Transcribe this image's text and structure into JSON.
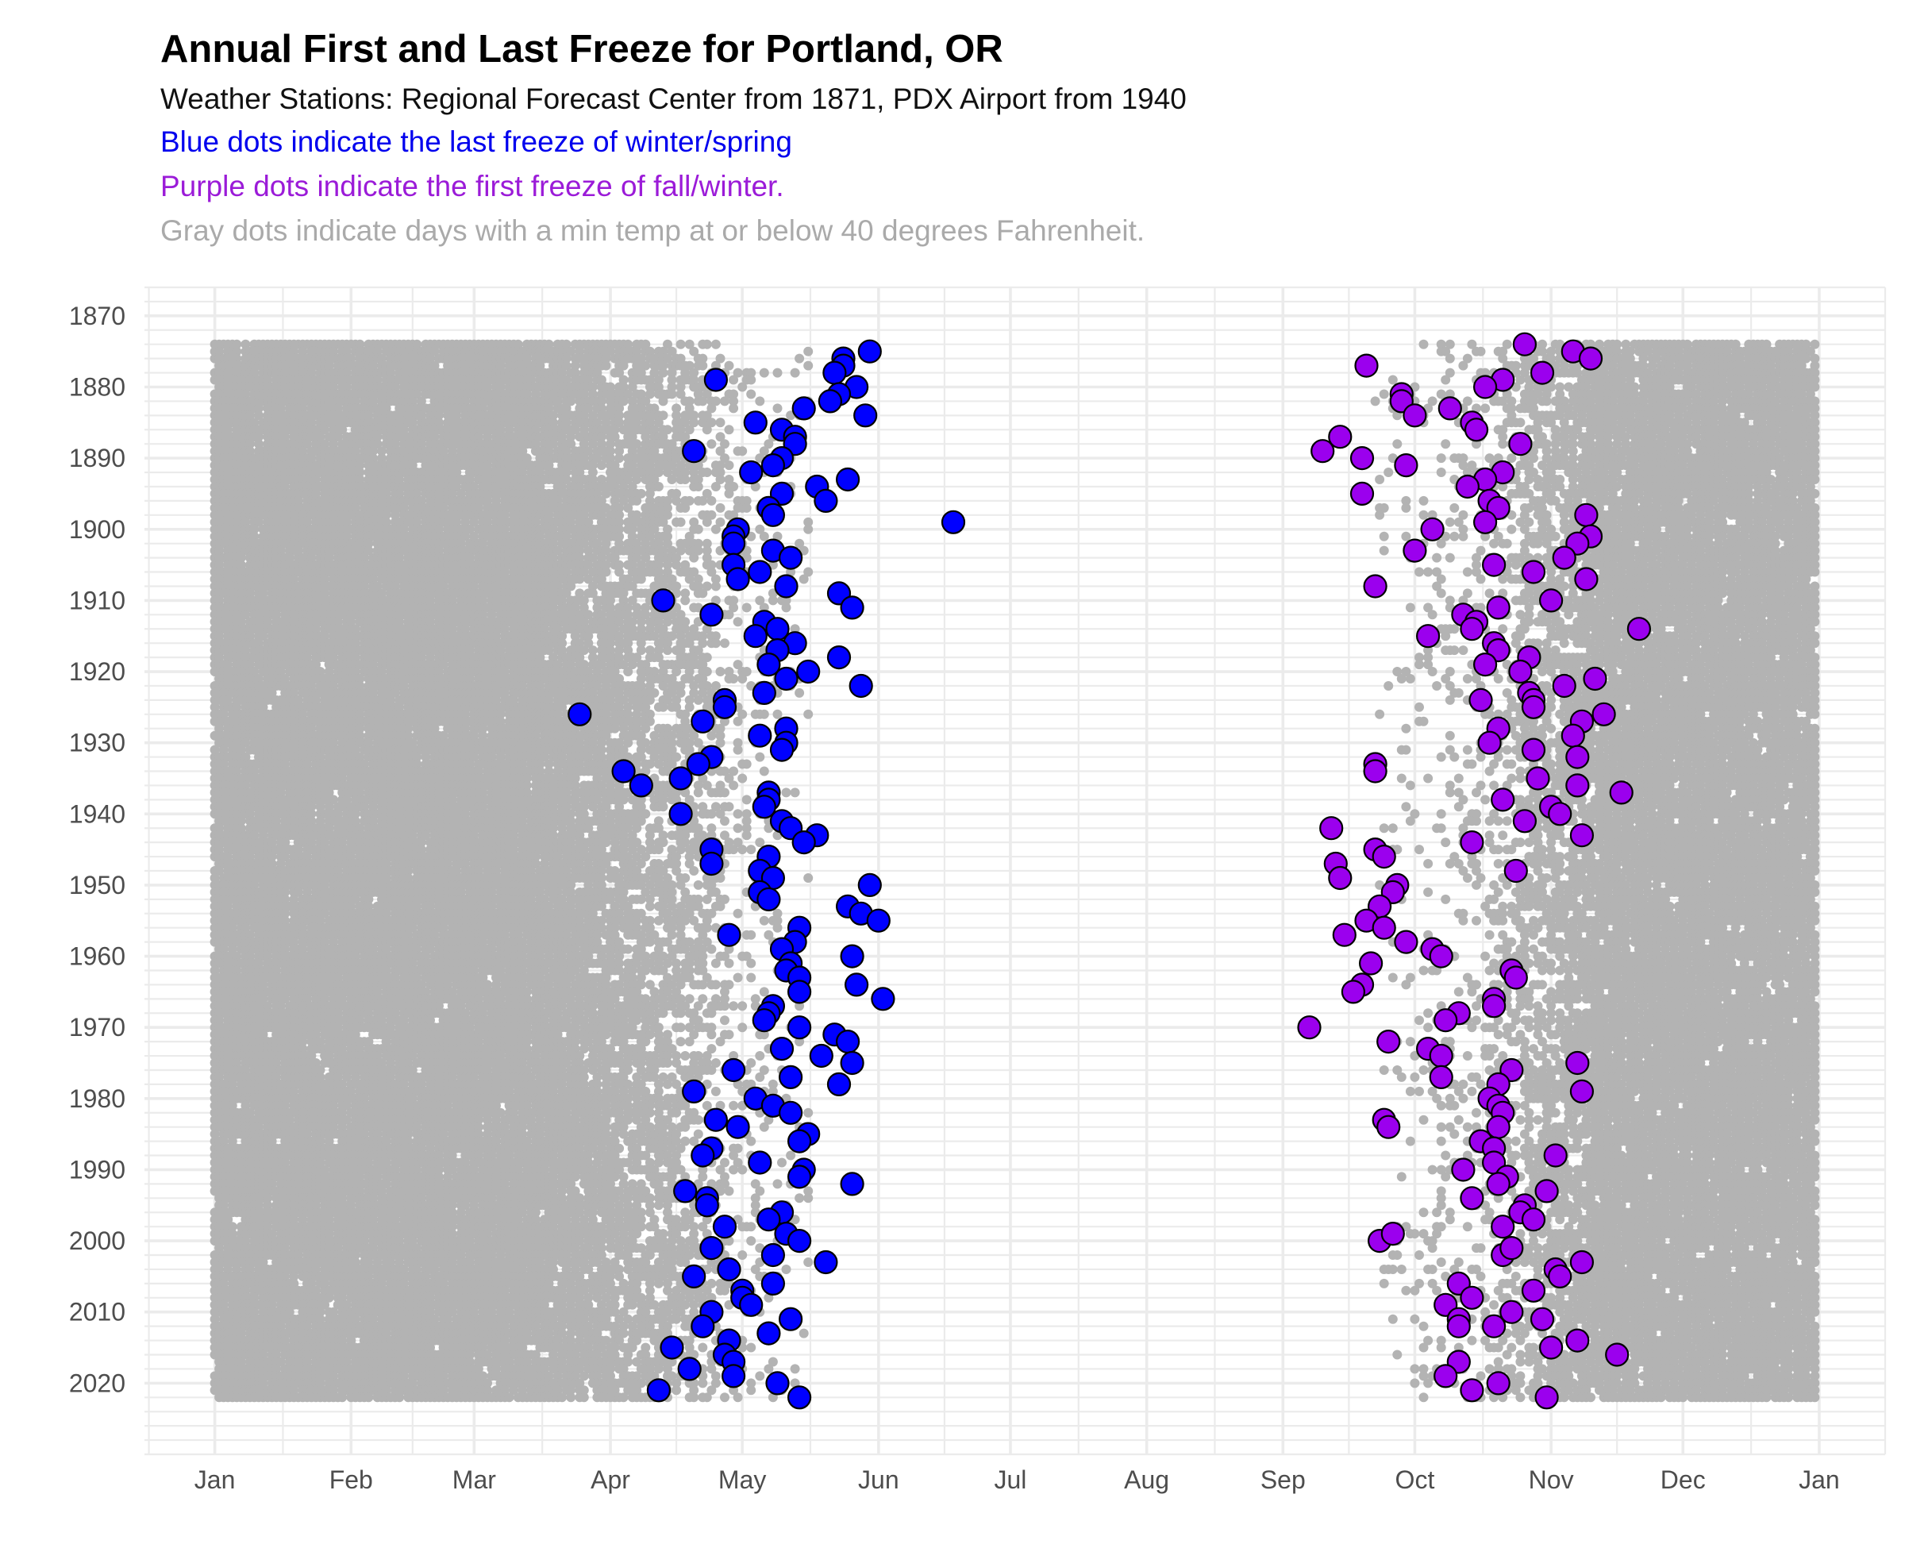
{
  "title": "Annual First and Last Freeze for Portland, OR",
  "subtitle_lines": [
    {
      "text": "Weather Stations: Regional Forecast Center from 1871, PDX Airport from 1940",
      "color": "#111111"
    },
    {
      "text": "Blue dots indicate the last freeze of winter/spring",
      "color": "#0000ee"
    },
    {
      "text": "Purple dots indicate the first freeze of fall/winter.",
      "color": "#9b1bd8"
    },
    {
      "text": "Gray dots indicate days with a min temp at or below 40 degrees Fahrenheit.",
      "color": "#aaaaaa"
    }
  ],
  "chart_data": {
    "type": "scatter",
    "title": "Annual First and Last Freeze for Portland, OR",
    "xlabel": "",
    "ylabel": "",
    "x_axis": "day of year",
    "x_ticks": [
      {
        "label": "Jan",
        "day": 1
      },
      {
        "label": "Feb",
        "day": 32
      },
      {
        "label": "Mar",
        "day": 60
      },
      {
        "label": "Apr",
        "day": 91
      },
      {
        "label": "May",
        "day": 121
      },
      {
        "label": "Jun",
        "day": 152
      },
      {
        "label": "Jul",
        "day": 182
      },
      {
        "label": "Aug",
        "day": 213
      },
      {
        "label": "Sep",
        "day": 244
      },
      {
        "label": "Oct",
        "day": 274
      },
      {
        "label": "Nov",
        "day": 305
      },
      {
        "label": "Dec",
        "day": 335
      },
      {
        "label": "Jan",
        "day": 366
      }
    ],
    "xlim": [
      -15,
      381
    ],
    "ylim": [
      2030,
      1866
    ],
    "y_reversed": true,
    "y_ticks": [
      1870,
      1880,
      1890,
      1900,
      1910,
      1920,
      1930,
      1940,
      1950,
      1960,
      1970,
      1980,
      1990,
      2000,
      2010,
      2020
    ],
    "grid": true,
    "legend": "none",
    "colors": {
      "last_freeze": "#0000ff",
      "first_freeze": "#9b00ee",
      "cold_days": "#b3b3b3",
      "grid": "#ebebeb"
    },
    "series": [
      {
        "name": "last freeze",
        "color": "#0000ff",
        "points": [
          [
            150,
            1875
          ],
          [
            144,
            1876
          ],
          [
            144,
            1877
          ],
          [
            142,
            1878
          ],
          [
            115,
            1879
          ],
          [
            147,
            1880
          ],
          [
            143,
            1881
          ],
          [
            141,
            1882
          ],
          [
            135,
            1883
          ],
          [
            149,
            1884
          ],
          [
            124,
            1885
          ],
          [
            130,
            1886
          ],
          [
            133,
            1887
          ],
          [
            133,
            1888
          ],
          [
            110,
            1889
          ],
          [
            130,
            1890
          ],
          [
            128,
            1891
          ],
          [
            123,
            1892
          ],
          [
            145,
            1893
          ],
          [
            138,
            1894
          ],
          [
            130,
            1895
          ],
          [
            140,
            1896
          ],
          [
            127,
            1897
          ],
          [
            128,
            1898
          ],
          [
            169,
            1899
          ],
          [
            120,
            1900
          ],
          [
            119,
            1901
          ],
          [
            119,
            1902
          ],
          [
            128,
            1903
          ],
          [
            132,
            1904
          ],
          [
            119,
            1905
          ],
          [
            125,
            1906
          ],
          [
            120,
            1907
          ],
          [
            131,
            1908
          ],
          [
            143,
            1909
          ],
          [
            103,
            1910
          ],
          [
            146,
            1911
          ],
          [
            114,
            1912
          ],
          [
            126,
            1913
          ],
          [
            129,
            1914
          ],
          [
            124,
            1915
          ],
          [
            133,
            1916
          ],
          [
            129,
            1917
          ],
          [
            143,
            1918
          ],
          [
            127,
            1919
          ],
          [
            136,
            1920
          ],
          [
            131,
            1921
          ],
          [
            148,
            1922
          ],
          [
            126,
            1923
          ],
          [
            117,
            1924
          ],
          [
            117,
            1925
          ],
          [
            84,
            1926
          ],
          [
            112,
            1927
          ],
          [
            131,
            1928
          ],
          [
            125,
            1929
          ],
          [
            131,
            1930
          ],
          [
            130,
            1931
          ],
          [
            114,
            1932
          ],
          [
            111,
            1933
          ],
          [
            94,
            1934
          ],
          [
            107,
            1935
          ],
          [
            98,
            1936
          ],
          [
            127,
            1937
          ],
          [
            127,
            1938
          ],
          [
            126,
            1939
          ],
          [
            107,
            1940
          ],
          [
            130,
            1941
          ],
          [
            132,
            1942
          ],
          [
            138,
            1943
          ],
          [
            135,
            1944
          ],
          [
            114,
            1945
          ],
          [
            127,
            1946
          ],
          [
            114,
            1947
          ],
          [
            125,
            1948
          ],
          [
            128,
            1949
          ],
          [
            150,
            1950
          ],
          [
            125,
            1951
          ],
          [
            127,
            1952
          ],
          [
            145,
            1953
          ],
          [
            148,
            1954
          ],
          [
            152,
            1955
          ],
          [
            134,
            1956
          ],
          [
            118,
            1957
          ],
          [
            133,
            1958
          ],
          [
            130,
            1959
          ],
          [
            146,
            1960
          ],
          [
            132,
            1961
          ],
          [
            131,
            1962
          ],
          [
            134,
            1963
          ],
          [
            147,
            1964
          ],
          [
            134,
            1965
          ],
          [
            153,
            1966
          ],
          [
            128,
            1967
          ],
          [
            127,
            1968
          ],
          [
            126,
            1969
          ],
          [
            134,
            1970
          ],
          [
            142,
            1971
          ],
          [
            145,
            1972
          ],
          [
            130,
            1973
          ],
          [
            139,
            1974
          ],
          [
            146,
            1975
          ],
          [
            119,
            1976
          ],
          [
            132,
            1977
          ],
          [
            143,
            1978
          ],
          [
            110,
            1979
          ],
          [
            124,
            1980
          ],
          [
            128,
            1981
          ],
          [
            132,
            1982
          ],
          [
            115,
            1983
          ],
          [
            120,
            1984
          ],
          [
            136,
            1985
          ],
          [
            134,
            1986
          ],
          [
            114,
            1987
          ],
          [
            112,
            1988
          ],
          [
            125,
            1989
          ],
          [
            135,
            1990
          ],
          [
            134,
            1991
          ],
          [
            146,
            1992
          ],
          [
            108,
            1993
          ],
          [
            113,
            1994
          ],
          [
            113,
            1995
          ],
          [
            130,
            1996
          ],
          [
            127,
            1997
          ],
          [
            117,
            1998
          ],
          [
            131,
            1999
          ],
          [
            134,
            2000
          ],
          [
            114,
            2001
          ],
          [
            128,
            2002
          ],
          [
            140,
            2003
          ],
          [
            118,
            2004
          ],
          [
            110,
            2005
          ],
          [
            128,
            2006
          ],
          [
            121,
            2007
          ],
          [
            121,
            2008
          ],
          [
            123,
            2009
          ],
          [
            114,
            2010
          ],
          [
            132,
            2011
          ],
          [
            112,
            2012
          ],
          [
            127,
            2013
          ],
          [
            118,
            2014
          ],
          [
            105,
            2015
          ],
          [
            117,
            2016
          ],
          [
            119,
            2017
          ],
          [
            109,
            2018
          ],
          [
            119,
            2019
          ],
          [
            129,
            2020
          ],
          [
            102,
            2021
          ],
          [
            134,
            2022
          ]
        ]
      },
      {
        "name": "first freeze",
        "color": "#9b00ee",
        "points": [
          [
            299,
            1874
          ],
          [
            310,
            1875
          ],
          [
            314,
            1876
          ],
          [
            263,
            1877
          ],
          [
            303,
            1878
          ],
          [
            294,
            1879
          ],
          [
            290,
            1880
          ],
          [
            271,
            1881
          ],
          [
            271,
            1882
          ],
          [
            282,
            1883
          ],
          [
            274,
            1884
          ],
          [
            287,
            1885
          ],
          [
            288,
            1886
          ],
          [
            257,
            1887
          ],
          [
            298,
            1888
          ],
          [
            253,
            1889
          ],
          [
            262,
            1890
          ],
          [
            272,
            1891
          ],
          [
            294,
            1892
          ],
          [
            290,
            1893
          ],
          [
            286,
            1894
          ],
          [
            262,
            1895
          ],
          [
            291,
            1896
          ],
          [
            293,
            1897
          ],
          [
            313,
            1898
          ],
          [
            290,
            1899
          ],
          [
            278,
            1900
          ],
          [
            314,
            1901
          ],
          [
            311,
            1902
          ],
          [
            274,
            1903
          ],
          [
            308,
            1904
          ],
          [
            292,
            1905
          ],
          [
            301,
            1906
          ],
          [
            313,
            1907
          ],
          [
            265,
            1908
          ],
          [
            305,
            1910
          ],
          [
            293,
            1911
          ],
          [
            285,
            1912
          ],
          [
            288,
            1913
          ],
          [
            287,
            1914
          ],
          [
            277,
            1915
          ],
          [
            292,
            1916
          ],
          [
            325,
            1914
          ],
          [
            293,
            1917
          ],
          [
            300,
            1918
          ],
          [
            290,
            1919
          ],
          [
            298,
            1920
          ],
          [
            315,
            1921
          ],
          [
            308,
            1922
          ],
          [
            300,
            1923
          ],
          [
            301,
            1924
          ],
          [
            289,
            1924
          ],
          [
            301,
            1925
          ],
          [
            317,
            1926
          ],
          [
            312,
            1927
          ],
          [
            293,
            1928
          ],
          [
            310,
            1929
          ],
          [
            291,
            1930
          ],
          [
            301,
            1931
          ],
          [
            311,
            1932
          ],
          [
            265,
            1933
          ],
          [
            265,
            1934
          ],
          [
            302,
            1935
          ],
          [
            311,
            1936
          ],
          [
            321,
            1937
          ],
          [
            294,
            1938
          ],
          [
            305,
            1939
          ],
          [
            307,
            1940
          ],
          [
            299,
            1941
          ],
          [
            255,
            1942
          ],
          [
            312,
            1943
          ],
          [
            287,
            1944
          ],
          [
            265,
            1945
          ],
          [
            267,
            1946
          ],
          [
            256,
            1947
          ],
          [
            297,
            1948
          ],
          [
            257,
            1949
          ],
          [
            270,
            1950
          ],
          [
            269,
            1951
          ],
          [
            266,
            1953
          ],
          [
            263,
            1955
          ],
          [
            267,
            1956
          ],
          [
            258,
            1957
          ],
          [
            272,
            1958
          ],
          [
            278,
            1959
          ],
          [
            280,
            1960
          ],
          [
            264,
            1961
          ],
          [
            296,
            1962
          ],
          [
            297,
            1963
          ],
          [
            262,
            1964
          ],
          [
            260,
            1965
          ],
          [
            292,
            1966
          ],
          [
            284,
            1968
          ],
          [
            292,
            1967
          ],
          [
            250,
            1970
          ],
          [
            281,
            1969
          ],
          [
            268,
            1972
          ],
          [
            277,
            1973
          ],
          [
            280,
            1974
          ],
          [
            311,
            1975
          ],
          [
            296,
            1976
          ],
          [
            280,
            1977
          ],
          [
            293,
            1978
          ],
          [
            312,
            1979
          ],
          [
            291,
            1980
          ],
          [
            293,
            1981
          ],
          [
            294,
            1982
          ],
          [
            267,
            1983
          ],
          [
            268,
            1984
          ],
          [
            293,
            1984
          ],
          [
            289,
            1986
          ],
          [
            292,
            1987
          ],
          [
            306,
            1988
          ],
          [
            285,
            1990
          ],
          [
            292,
            1989
          ],
          [
            295,
            1991
          ],
          [
            293,
            1992
          ],
          [
            304,
            1993
          ],
          [
            287,
            1994
          ],
          [
            299,
            1995
          ],
          [
            298,
            1996
          ],
          [
            301,
            1997
          ],
          [
            294,
            1998
          ],
          [
            266,
            2000
          ],
          [
            269,
            1999
          ],
          [
            294,
            2002
          ],
          [
            296,
            2001
          ],
          [
            306,
            2004
          ],
          [
            307,
            2005
          ],
          [
            312,
            2003
          ],
          [
            301,
            2007
          ],
          [
            284,
            2006
          ],
          [
            287,
            2008
          ],
          [
            281,
            2009
          ],
          [
            284,
            2011
          ],
          [
            296,
            2010
          ],
          [
            284,
            2012
          ],
          [
            303,
            2011
          ],
          [
            292,
            2012
          ],
          [
            284,
            2017
          ],
          [
            305,
            2015
          ],
          [
            311,
            2014
          ],
          [
            320,
            2016
          ],
          [
            281,
            2019
          ],
          [
            293,
            2020
          ],
          [
            287,
            2021
          ],
          [
            304,
            2022
          ]
        ]
      }
    ],
    "background_series": {
      "name": "days with min temp <= 40F",
      "color": "#b3b3b3",
      "year_range": [
        1874,
        2022
      ],
      "pattern": "dense in Jan-Apr and Nov-Dec, sparse in May and Oct"
    }
  }
}
